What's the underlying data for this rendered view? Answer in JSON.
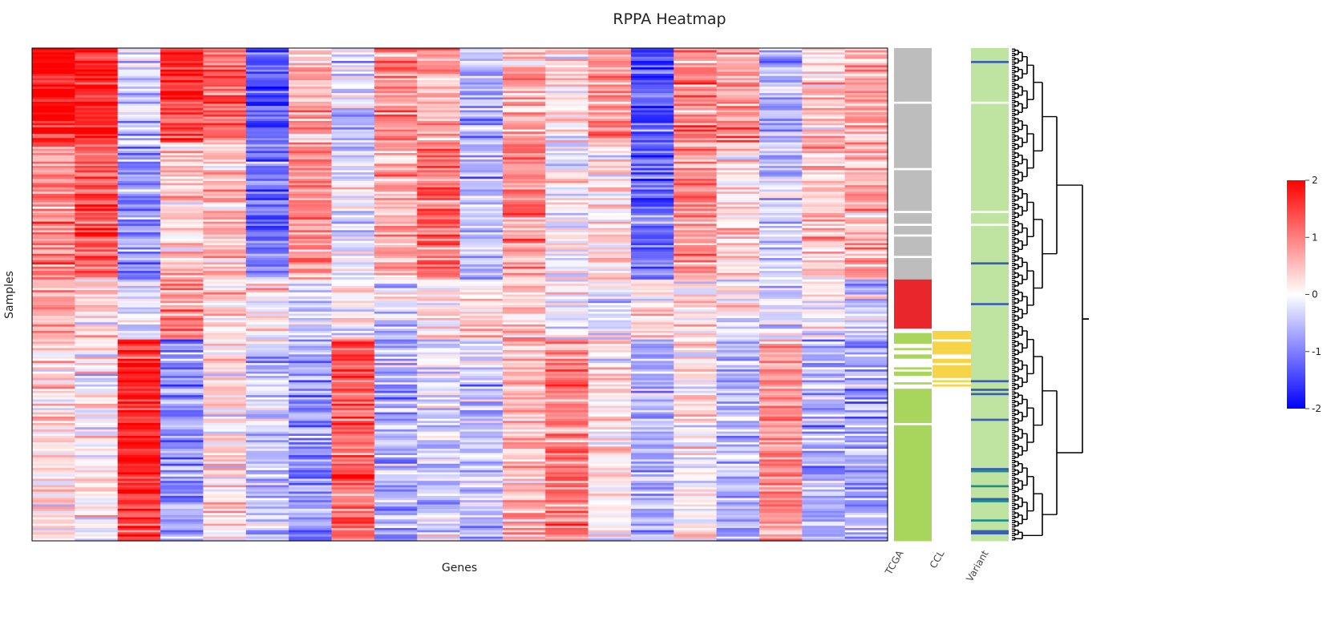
{
  "chart_data": {
    "type": "heatmap",
    "title": "RPPA Heatmap",
    "xlabel": "Genes",
    "ylabel": "Samples",
    "colorscale": {
      "min": -2,
      "max": 2,
      "low_color": "#0000ff",
      "mid_color": "#ffffff",
      "high_color": "#ff0000",
      "ticks": [
        "2",
        "1",
        "0",
        "-1",
        "-2"
      ]
    },
    "columns": 20,
    "rows": 230,
    "column_cluster_means": [
      [
        1.9,
        1.8,
        -0.4,
        1.6,
        1.2,
        -1.3,
        0.6,
        -0.3,
        0.9,
        0.7,
        -0.7,
        0.6,
        0.2,
        0.9,
        -1.4,
        0.9,
        0.9,
        -0.6,
        0.4,
        0.7
      ],
      [
        0.9,
        1.3,
        -0.8,
        0.4,
        0.5,
        -1.0,
        0.8,
        -0.2,
        0.7,
        1.2,
        -0.5,
        0.8,
        0.0,
        0.3,
        -1.2,
        0.8,
        0.3,
        -0.4,
        0.5,
        0.6
      ],
      [
        0.6,
        0.3,
        -0.3,
        0.9,
        0.3,
        0.2,
        -0.3,
        0.1,
        -0.2,
        0.2,
        0.4,
        0.5,
        -0.1,
        -0.2,
        0.3,
        0.1,
        0.0,
        -0.2,
        -0.1,
        -0.3
      ],
      [
        0.2,
        0.1,
        1.7,
        -0.8,
        0.2,
        -0.4,
        -0.8,
        1.2,
        -0.5,
        -0.3,
        -0.4,
        0.6,
        1.0,
        0.2,
        -0.6,
        0.1,
        -0.5,
        0.9,
        -0.6,
        -0.7
      ]
    ],
    "row_groups": [
      {
        "label": "TCGA",
        "category": "gray",
        "share": 0.47
      },
      {
        "label": "TCGA",
        "category": "red",
        "share": 0.1
      },
      {
        "label": "CCL",
        "category": "yellow",
        "share": 0.12
      },
      {
        "label": "TCGA",
        "category": "green",
        "share": 0.31
      }
    ],
    "annotation_tracks": [
      {
        "name": "TCGA"
      },
      {
        "name": "CCL"
      },
      {
        "name": "Variant"
      }
    ],
    "annotation_colors": {
      "gray": "#bdbdbd",
      "red": "#e8262c",
      "green": "#a8d65c",
      "yellow": "#f6d347",
      "teal": "#1f8f86",
      "blue": "#3a5fb0",
      "light_green": "#bfe3a0"
    },
    "dendrogram": {
      "orientation": "right",
      "color": "#000000"
    }
  }
}
